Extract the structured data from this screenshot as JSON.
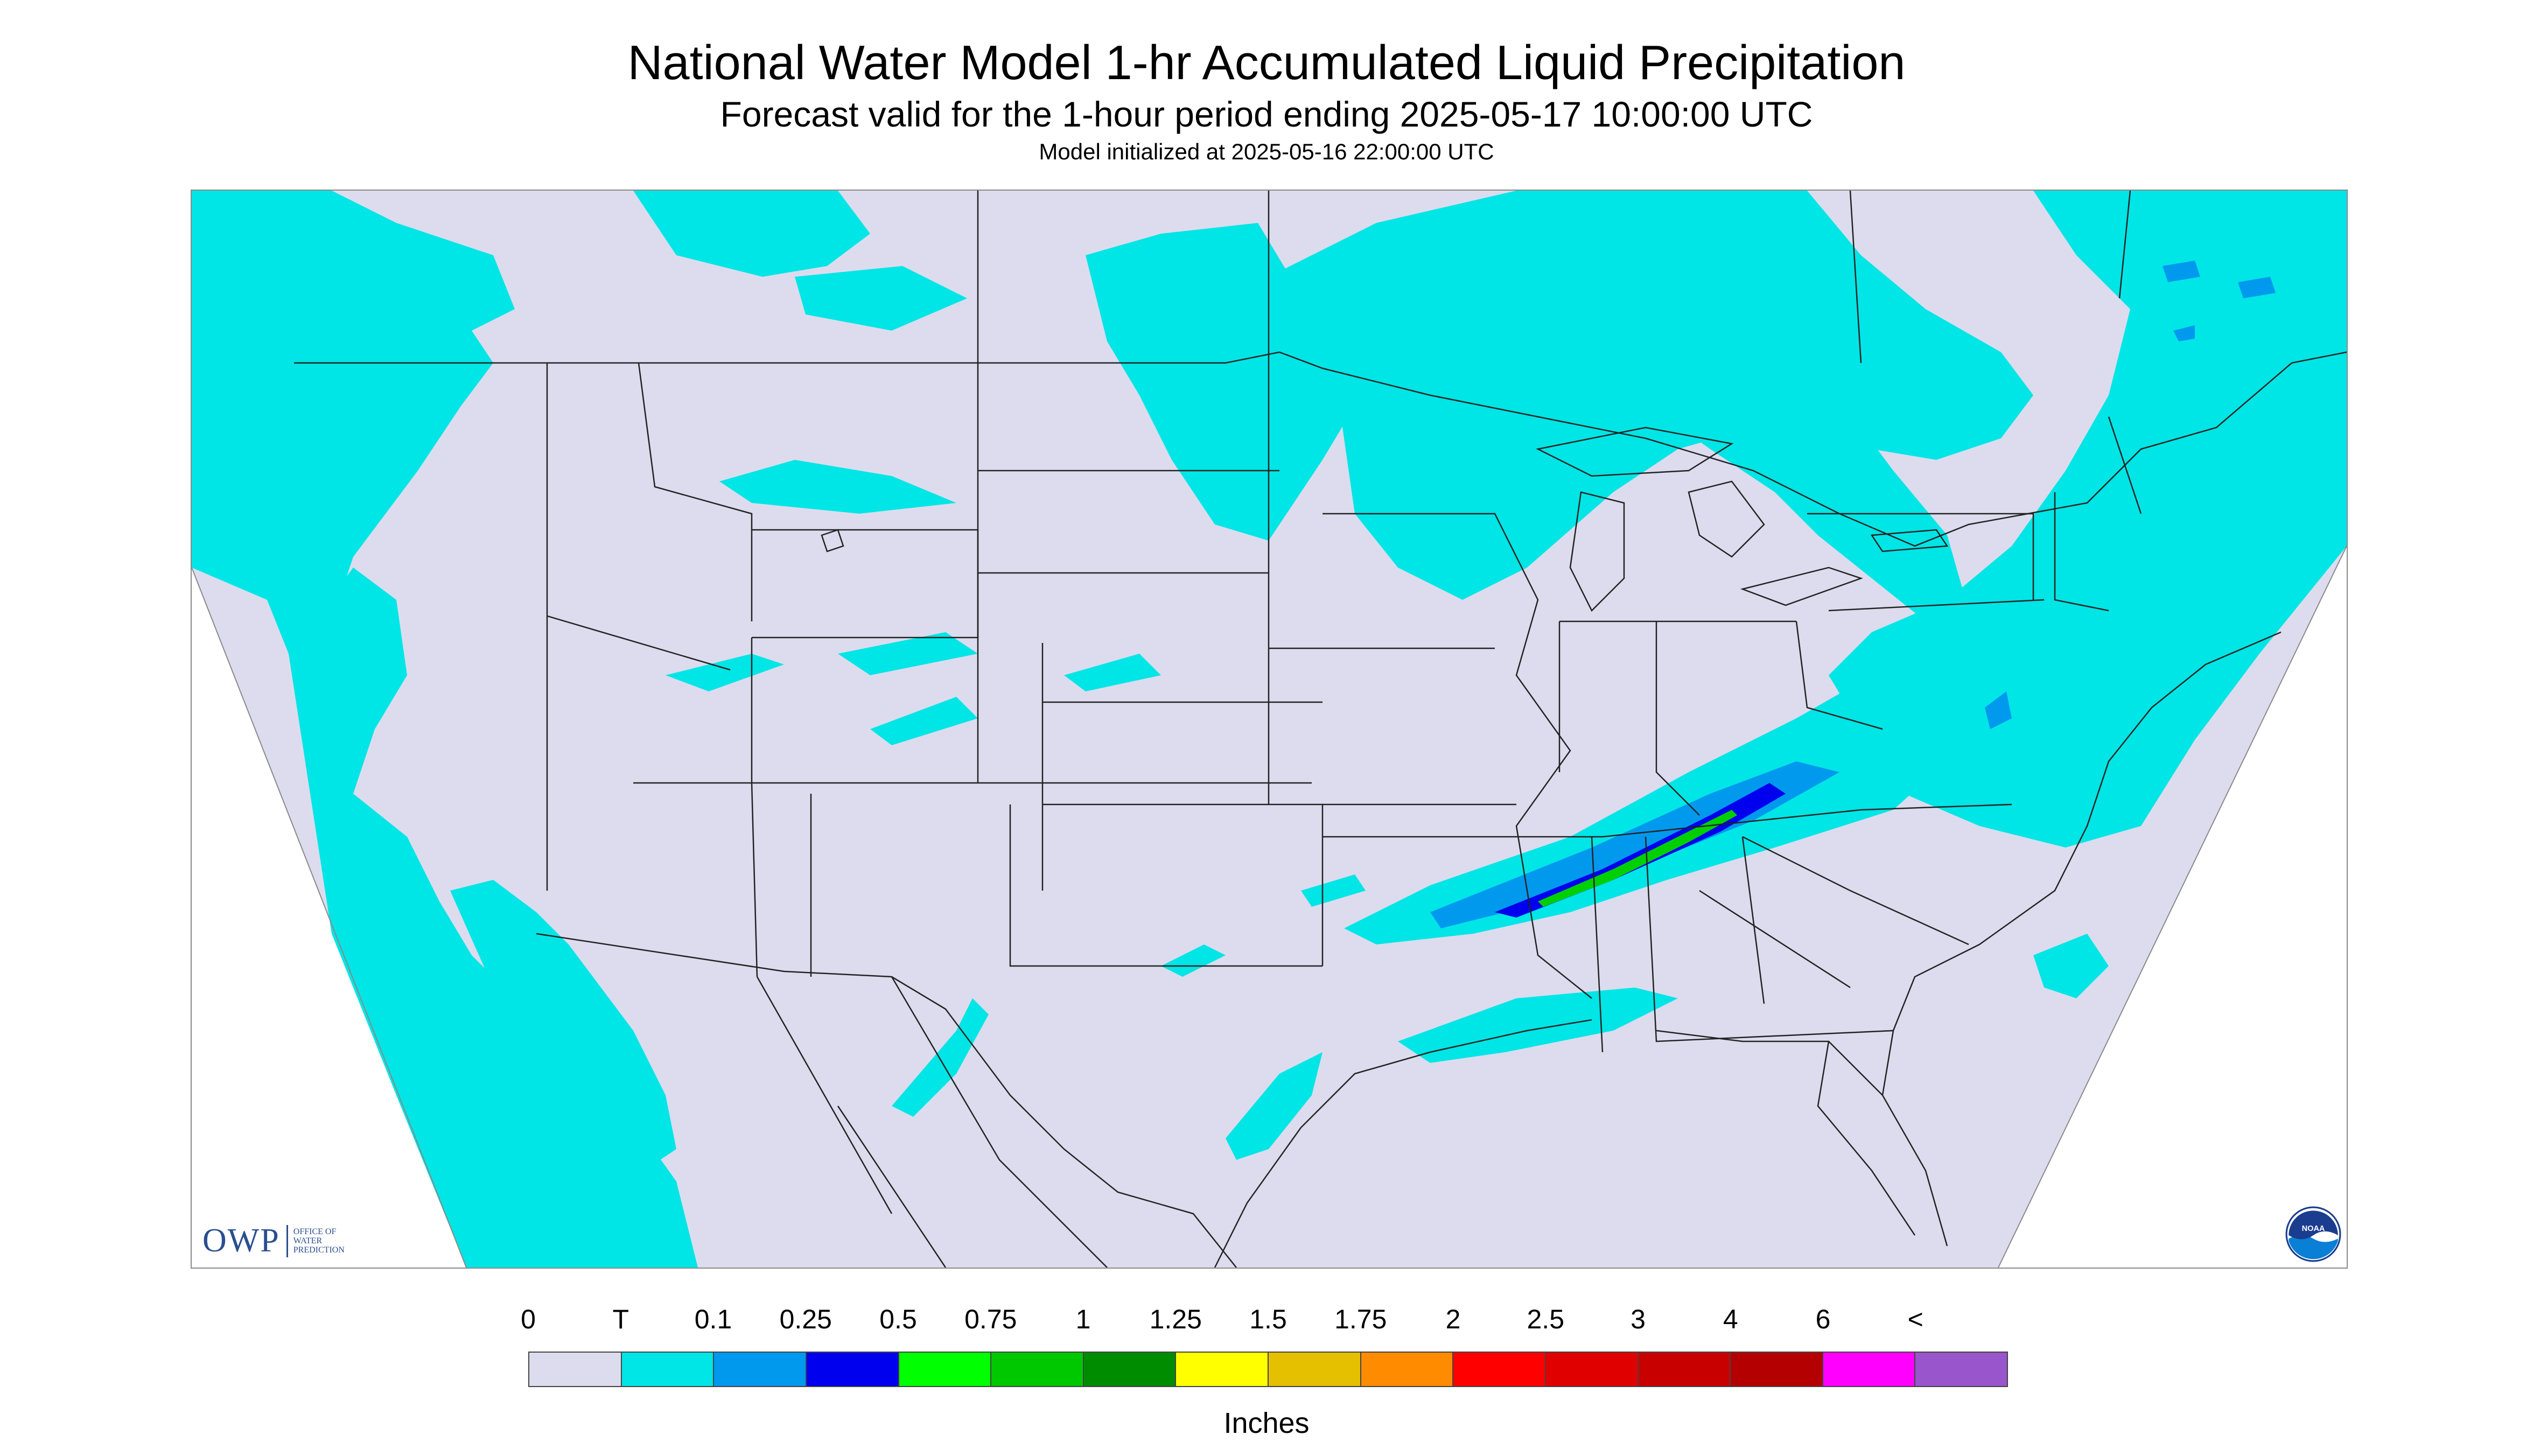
{
  "header": {
    "title": "National Water Model 1-hr Accumulated Liquid Precipitation",
    "subtitle": "Forecast valid for the 1-hour period ending 2025-05-17 10:00:00 UTC",
    "init_line": "Model initialized at 2025-05-16 22:00:00 UTC"
  },
  "map": {
    "background_color": "#dcdcee",
    "no_data_color": "#ffffff",
    "boundary_color": "#222222",
    "logos": {
      "owp": {
        "mark": "OWP",
        "lines": [
          "OFFICE OF",
          "WATER",
          "PREDICTION"
        ]
      },
      "noaa": {
        "text": "NOAA",
        "icon": "noaa-seal-icon"
      }
    }
  },
  "legend": {
    "labels": [
      "0",
      "T",
      "0.1",
      "0.25",
      "0.5",
      "0.75",
      "1",
      "1.25",
      "1.5",
      "1.75",
      "2",
      "2.5",
      "3",
      "4",
      "6",
      "<"
    ],
    "colors": [
      "#dcdcee",
      "#00e5e5",
      "#0099ee",
      "#0000ee",
      "#00ff00",
      "#00c800",
      "#008c00",
      "#ffff00",
      "#e5c000",
      "#ff8c00",
      "#ff0000",
      "#e10000",
      "#c80000",
      "#b40000",
      "#ff00ff",
      "#9955cc"
    ],
    "units": "Inches"
  }
}
